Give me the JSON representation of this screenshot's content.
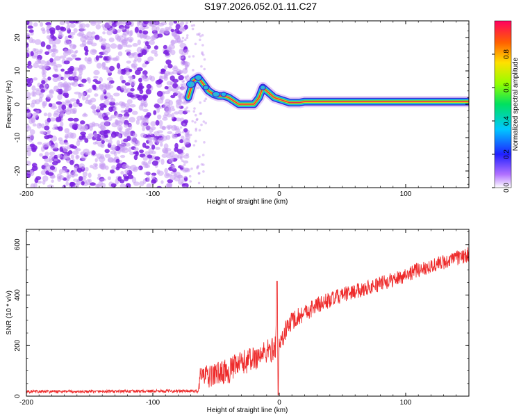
{
  "title": "S197.2026.052.01.11.C27",
  "colors": {
    "noise": "#8a2be2",
    "signal_core": "#e8304a",
    "snr_line": "#ee2b2b",
    "axis": "#000000"
  },
  "chart_data": [
    {
      "type": "heatmap",
      "name": "spectrogram",
      "xlabel": "Height of straight line (km)",
      "ylabel": "Frequency (Hz)",
      "xlim": [
        -200,
        150
      ],
      "ylim": [
        -25,
        25
      ],
      "x_ticks": [
        -200,
        -100,
        0,
        100
      ],
      "x_tick_labels": [
        "-200",
        "-100",
        "0",
        "100"
      ],
      "y_ticks": [
        -20,
        -10,
        0,
        10,
        20
      ],
      "y_tick_labels": [
        "-20",
        "-10",
        "0",
        "10",
        "20"
      ],
      "noise_region_x": [
        -200,
        -72
      ],
      "ridge": {
        "x": [
          -72,
          -68,
          -64,
          -60,
          -56,
          -52,
          -48,
          -44,
          -40,
          -36,
          -32,
          -28,
          -24,
          -20,
          -16,
          -13,
          -10,
          -7,
          -4,
          0,
          4,
          8,
          12,
          16,
          20,
          30,
          40,
          60,
          80,
          100,
          120,
          140,
          150
        ],
        "freq": [
          2,
          7,
          8,
          6,
          4,
          3,
          2.5,
          2.5,
          2,
          1,
          0,
          0,
          0,
          0,
          2,
          5,
          4,
          3,
          2,
          1.5,
          1,
          0.5,
          0.5,
          0.5,
          0.8,
          0.8,
          0.8,
          0.8,
          0.8,
          0.8,
          0.8,
          0.8,
          0.8
        ]
      },
      "colorbar": {
        "label": "Normalized spectral amplitude",
        "range": [
          0,
          1
        ],
        "ticks": [
          0.0,
          0.2,
          0.4,
          0.6,
          0.8
        ],
        "tick_labels": [
          "0.0",
          "0.2",
          "0.4",
          "0.6",
          "0.8"
        ]
      }
    },
    {
      "type": "line",
      "name": "snr",
      "xlabel": "Height of straight line (km)",
      "ylabel": "SNR (10 * v/v)",
      "xlim": [
        -200,
        150
      ],
      "ylim": [
        0,
        660
      ],
      "x_ticks": [
        -200,
        -100,
        0,
        100
      ],
      "x_tick_labels": [
        "-200",
        "-100",
        "0",
        "100"
      ],
      "y_ticks": [
        0,
        200,
        400,
        600
      ],
      "y_tick_labels": [
        "0",
        "200",
        "400",
        "600"
      ],
      "series": [
        {
          "name": "SNR",
          "x": [
            -200,
            -150,
            -100,
            -75,
            -64,
            -62,
            -60,
            -55,
            -50,
            -40,
            -30,
            -20,
            -10,
            -5,
            -3,
            -2,
            -1,
            0,
            5,
            10,
            20,
            30,
            50,
            70,
            90,
            110,
            130,
            150
          ],
          "mean": [
            18,
            18,
            20,
            20,
            20,
            95,
            80,
            75,
            90,
            100,
            130,
            150,
            175,
            185,
            200,
            420,
            100,
            200,
            260,
            300,
            330,
            360,
            400,
            430,
            460,
            500,
            530,
            560
          ],
          "noise": [
            6,
            6,
            6,
            6,
            6,
            45,
            45,
            45,
            45,
            50,
            50,
            50,
            50,
            50,
            50,
            20,
            50,
            45,
            40,
            40,
            35,
            35,
            30,
            30,
            30,
            30,
            30,
            30
          ]
        }
      ]
    }
  ]
}
